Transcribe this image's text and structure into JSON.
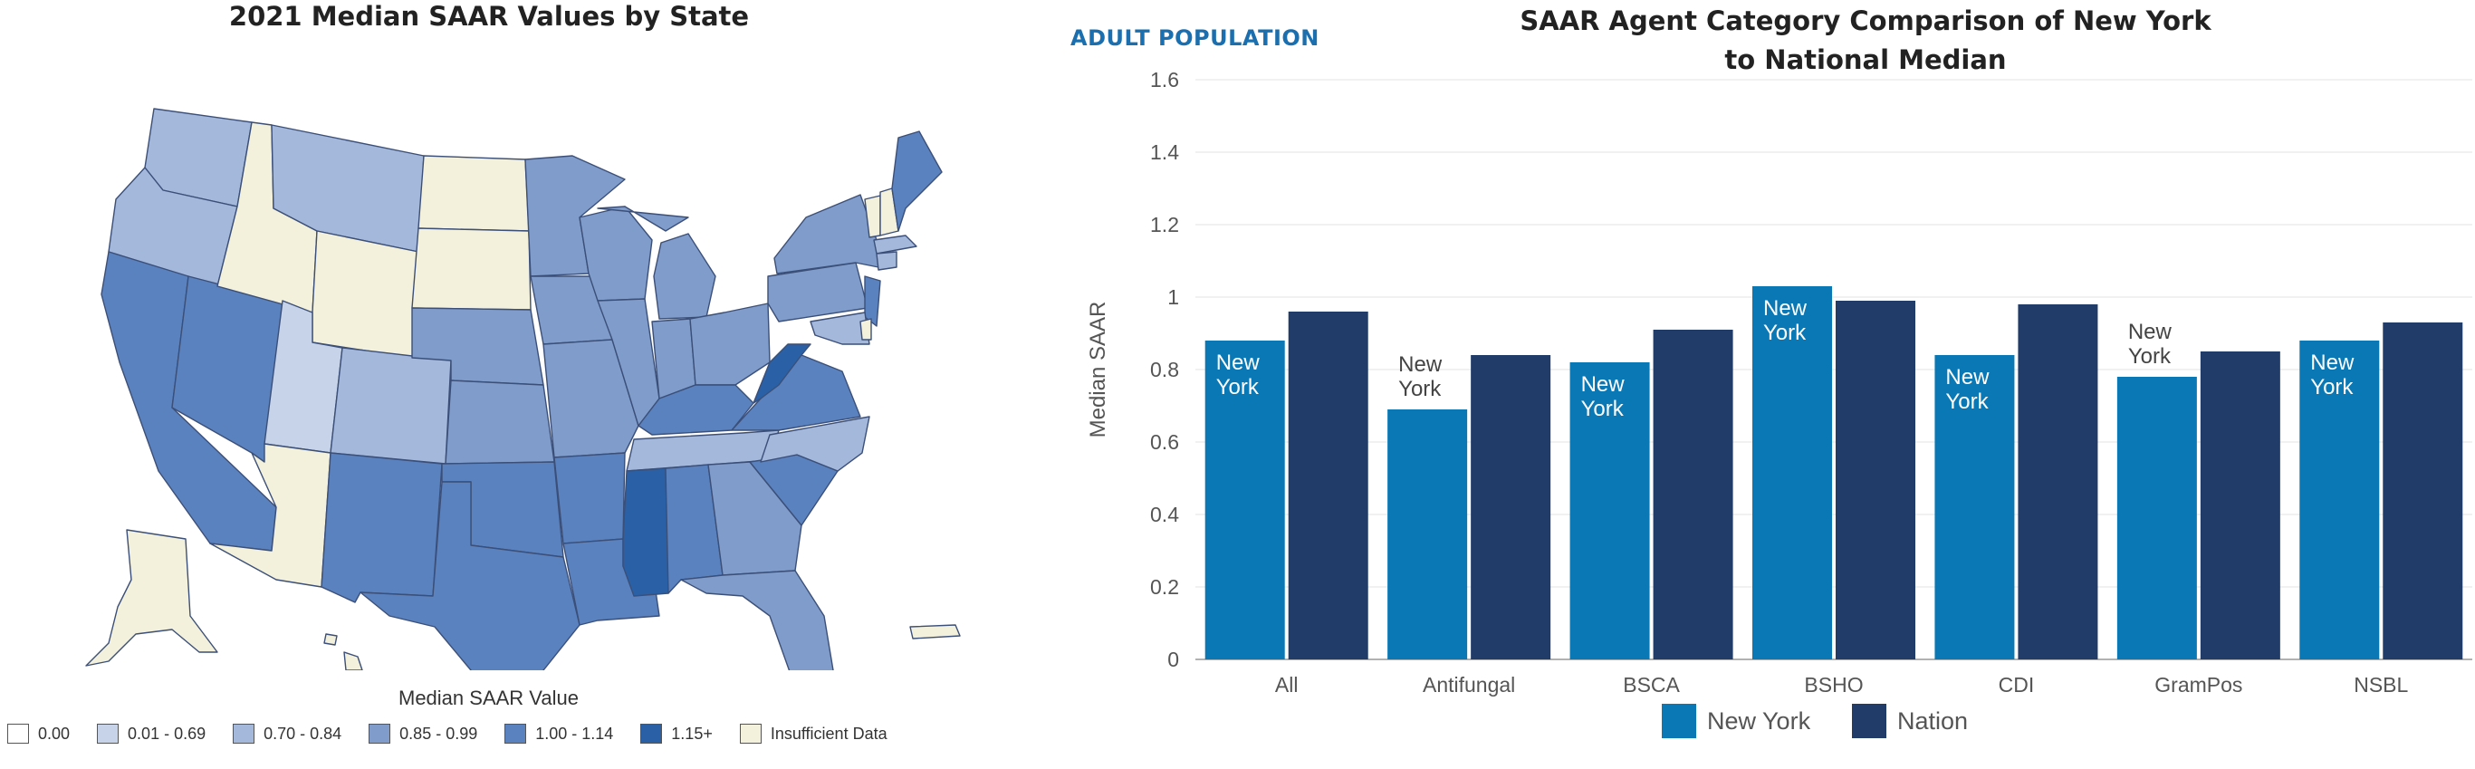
{
  "map": {
    "title": "2021 Median SAAR Values by State",
    "legend_title": "Median SAAR Value",
    "legend": [
      {
        "label": "0.00",
        "color": "#ffffff"
      },
      {
        "label": "0.01 - 0.69",
        "color": "#c7d3e8"
      },
      {
        "label": "0.70 - 0.84",
        "color": "#a4b8dc"
      },
      {
        "label": "0.85 - 0.99",
        "color": "#7f9ccb"
      },
      {
        "label": "1.00 - 1.14",
        "color": "#5a82bf"
      },
      {
        "label": "1.15+",
        "color": "#2a61a6"
      },
      {
        "label": "Insufficient Data",
        "color": "#f3f1dc"
      }
    ]
  },
  "header": {
    "adult_population": "ADULT POPULATION"
  },
  "chart_data": {
    "type": "bar",
    "title_line1": "SAAR Agent Category Comparison of New York",
    "title_line2": "to National Median",
    "xlabel": "",
    "ylabel": "Median SAAR",
    "ylim": [
      0,
      1.6
    ],
    "yticks": [
      "0",
      "0.2",
      "0.4",
      "0.6",
      "0.8",
      "1",
      "1.2",
      "1.4",
      "1.6"
    ],
    "categories": [
      "All",
      "Antifungal",
      "BSCA",
      "BSHO",
      "CDI",
      "GramPos",
      "NSBL"
    ],
    "series": [
      {
        "name": "New York",
        "color": "#0a78b4",
        "values": [
          0.88,
          0.69,
          0.82,
          1.03,
          0.84,
          0.78,
          0.88
        ]
      },
      {
        "name": "Nation",
        "color": "#213c69",
        "values": [
          0.96,
          0.84,
          0.91,
          0.99,
          0.98,
          0.85,
          0.93
        ]
      }
    ],
    "bar_label": "New York",
    "bar_label_inside": [
      true,
      false,
      true,
      true,
      true,
      false,
      true
    ]
  }
}
